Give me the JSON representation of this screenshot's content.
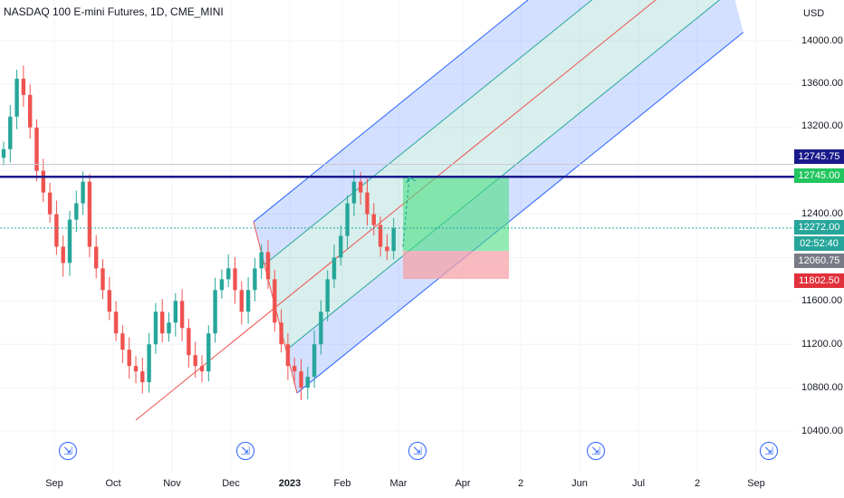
{
  "header": {
    "title": "NASDAQ 100 E-mini Futures, 1D, CME_MINI"
  },
  "price_axis": {
    "currency": "USD",
    "ticks": [
      "14000.00",
      "13600.00",
      "13200.00",
      "12400.00",
      "11600.00",
      "11200.00",
      "10800.00",
      "10400.00"
    ],
    "tags": {
      "level_top": "12745.75",
      "level": "12745.00",
      "current": "12272.00",
      "countdown": "02:52:40",
      "entry": "12060.75",
      "stop": "11802.50"
    }
  },
  "time_axis": {
    "labels": [
      "Sep",
      "Oct",
      "Nov",
      "Dec",
      "2023",
      "Feb",
      "Mar",
      "Apr",
      "2",
      "Jun",
      "Jul",
      "2",
      "Sep"
    ]
  },
  "colors": {
    "up": "#26a69a",
    "down": "#ef5350",
    "horizontal_line": "#1a1a8c",
    "pitchfork_outer": "#2962ff",
    "pitchfork_inner": "#26a69a",
    "median": "#ef5350",
    "target_zone": "#4ade80",
    "stop_zone": "#f5a3a8"
  },
  "chart_data": {
    "type": "candlestick",
    "symbol": "NASDAQ 100 E-mini Futures",
    "timeframe": "1D",
    "exchange": "CME_MINI",
    "ylim": [
      10200,
      14300
    ],
    "x_labels": [
      "Sep",
      "Oct",
      "Nov",
      "Dec",
      "2023",
      "Feb",
      "Mar",
      "Apr",
      "2",
      "Jun",
      "Jul",
      "2",
      "Sep"
    ],
    "horizontal_level": 12745.0,
    "current_price": 12272.0,
    "position": {
      "entry": 12060.75,
      "target": 12745.0,
      "stop": 11802.5
    },
    "pitchfork": {
      "pivot": {
        "date": "mid Oct",
        "price": 10500
      },
      "upper": {
        "date": "mid Dec",
        "price": 12330
      },
      "lower": {
        "date": "early Jan",
        "price": 10750
      }
    },
    "close_path": [
      13000,
      13300,
      13650,
      13500,
      13200,
      12800,
      12600,
      12400,
      12100,
      11950,
      12350,
      12500,
      12700,
      12100,
      11900,
      11700,
      11500,
      11300,
      11150,
      11000,
      10950,
      10850,
      11200,
      11500,
      11300,
      11400,
      11600,
      11350,
      11100,
      11000,
      10950,
      11300,
      11700,
      11800,
      11900,
      11700,
      11500,
      11700,
      11900,
      12050,
      11800,
      11400,
      11200,
      11000,
      10950,
      10800,
      10900,
      11200,
      11500,
      11800,
      12000,
      12200,
      12500,
      12700,
      12600,
      12400,
      12300,
      12100,
      12060,
      12272
    ],
    "grid": true
  }
}
